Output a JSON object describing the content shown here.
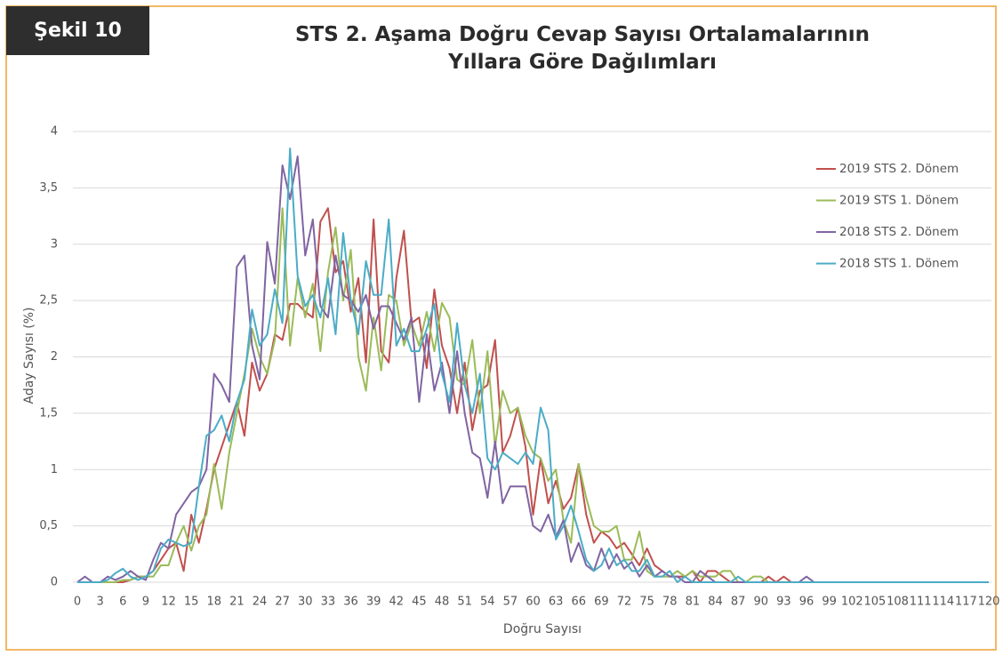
{
  "figure_label": "Şekil 10",
  "chart_data": {
    "type": "line",
    "title": "STS 2. Aşama Doğru Cevap Sayısı Ortalamalarının Yıllara Göre Dağılımları",
    "xlabel": "Doğru Sayısı",
    "ylabel": "Aday Sayısı (%)",
    "x": [
      0,
      1,
      2,
      3,
      4,
      5,
      6,
      7,
      8,
      9,
      10,
      11,
      12,
      13,
      14,
      15,
      16,
      17,
      18,
      19,
      20,
      21,
      22,
      23,
      24,
      25,
      26,
      27,
      28,
      29,
      30,
      31,
      32,
      33,
      34,
      35,
      36,
      37,
      38,
      39,
      40,
      41,
      42,
      43,
      44,
      45,
      46,
      47,
      48,
      49,
      50,
      51,
      52,
      53,
      54,
      55,
      56,
      57,
      58,
      59,
      60,
      61,
      62,
      63,
      64,
      65,
      66,
      67,
      68,
      69,
      70,
      71,
      72,
      73,
      74,
      75,
      76,
      77,
      78,
      79,
      80,
      81,
      82,
      83,
      84,
      85,
      86,
      87,
      88,
      89,
      90,
      91,
      92,
      93,
      94,
      95,
      96,
      97,
      98,
      99,
      100,
      101,
      102,
      103,
      104,
      105,
      106,
      107,
      108,
      109,
      110,
      111,
      112,
      113,
      114,
      115,
      116,
      117,
      118,
      119,
      120
    ],
    "xlim": [
      0,
      120
    ],
    "xticks": [
      0,
      3,
      6,
      9,
      12,
      15,
      18,
      21,
      24,
      27,
      30,
      33,
      36,
      39,
      42,
      45,
      48,
      51,
      54,
      57,
      60,
      63,
      66,
      69,
      72,
      75,
      78,
      81,
      84,
      87,
      90,
      93,
      96,
      99,
      102,
      105,
      108,
      111,
      114,
      117,
      120
    ],
    "ylim": [
      0,
      4
    ],
    "yticks": [
      0,
      {
        "value": 0.5,
        "label": "0,5"
      },
      1,
      {
        "value": 1.5,
        "label": "1,5"
      },
      2,
      {
        "value": 2.5,
        "label": "2,5"
      },
      3,
      {
        "value": 3.5,
        "label": "3,5"
      },
      4
    ],
    "grid": true,
    "legend": "right",
    "series": [
      {
        "name": "2019 STS 2. Dönem",
        "color": "#c0504d",
        "values": [
          0,
          0,
          0,
          0,
          0,
          0,
          0,
          0.02,
          0.05,
          0.05,
          0.1,
          0.2,
          0.3,
          0.35,
          0.1,
          0.6,
          0.35,
          0.65,
          1.0,
          1.2,
          1.4,
          1.6,
          1.3,
          1.95,
          1.7,
          1.85,
          2.2,
          2.15,
          2.47,
          2.47,
          2.4,
          2.35,
          3.2,
          3.32,
          2.75,
          2.85,
          2.4,
          2.7,
          1.95,
          3.22,
          2.05,
          1.95,
          2.7,
          3.12,
          2.3,
          2.35,
          1.9,
          2.6,
          2.1,
          1.9,
          1.5,
          1.95,
          1.35,
          1.7,
          1.75,
          2.15,
          1.15,
          1.3,
          1.55,
          1.2,
          0.6,
          1.1,
          0.7,
          0.9,
          0.65,
          0.75,
          1.05,
          0.6,
          0.35,
          0.45,
          0.4,
          0.3,
          0.35,
          0.25,
          0.15,
          0.3,
          0.15,
          0.1,
          0.05,
          0.05,
          0.05,
          0.1,
          0,
          0.1,
          0.1,
          0.05,
          0,
          0,
          0,
          0,
          0,
          0.05,
          0,
          0.05,
          0,
          0,
          0,
          0,
          0,
          0,
          0,
          0,
          0,
          0,
          0,
          0,
          0,
          0,
          0,
          0,
          0,
          0,
          0,
          0,
          0,
          0,
          0,
          0,
          0,
          0,
          0
        ]
      },
      {
        "name": "2019 STS 1. Dönem",
        "color": "#9bbb59",
        "values": [
          0,
          0,
          0,
          0,
          0,
          0,
          0.02,
          0.02,
          0.05,
          0.05,
          0.05,
          0.15,
          0.15,
          0.35,
          0.5,
          0.28,
          0.5,
          0.6,
          1.05,
          0.65,
          1.15,
          1.5,
          1.85,
          2.25,
          2.0,
          1.85,
          2.15,
          3.32,
          2.1,
          2.7,
          2.35,
          2.65,
          2.05,
          2.75,
          3.15,
          2.5,
          2.95,
          2.0,
          1.7,
          2.35,
          1.88,
          2.55,
          2.5,
          2.1,
          2.3,
          2.1,
          2.4,
          2.05,
          2.48,
          2.35,
          1.8,
          1.75,
          2.15,
          1.5,
          2.05,
          1.2,
          1.7,
          1.5,
          1.55,
          1.3,
          1.15,
          1.1,
          0.9,
          1.0,
          0.55,
          0.35,
          1.05,
          0.75,
          0.5,
          0.45,
          0.45,
          0.5,
          0.2,
          0.2,
          0.45,
          0.1,
          0.05,
          0.05,
          0.05,
          0.1,
          0.05,
          0.1,
          0.05,
          0.05,
          0.05,
          0.1,
          0.1,
          0,
          0,
          0.05,
          0.05,
          0,
          0,
          0,
          0,
          0,
          0,
          0,
          0,
          0,
          0,
          0,
          0,
          0,
          0,
          0,
          0,
          0,
          0,
          0,
          0,
          0,
          0,
          0,
          0,
          0,
          0,
          0,
          0,
          0,
          0
        ]
      },
      {
        "name": "2018 STS 2. Dönem",
        "color": "#8064a2",
        "values": [
          0,
          0.05,
          0,
          0,
          0.05,
          0.02,
          0.05,
          0.1,
          0.05,
          0.02,
          0.2,
          0.35,
          0.3,
          0.6,
          0.7,
          0.8,
          0.85,
          1.0,
          1.85,
          1.75,
          1.6,
          2.8,
          2.9,
          2.1,
          1.8,
          3.02,
          2.65,
          3.7,
          3.4,
          3.78,
          2.9,
          3.22,
          2.45,
          2.35,
          2.9,
          2.55,
          2.5,
          2.4,
          2.55,
          2.25,
          2.45,
          2.45,
          2.3,
          2.15,
          2.35,
          1.6,
          2.2,
          1.7,
          1.95,
          1.5,
          2.05,
          1.5,
          1.15,
          1.1,
          0.75,
          1.25,
          0.7,
          0.85,
          0.85,
          0.85,
          0.5,
          0.45,
          0.6,
          0.4,
          0.55,
          0.18,
          0.35,
          0.15,
          0.1,
          0.3,
          0.12,
          0.25,
          0.12,
          0.18,
          0.05,
          0.15,
          0.05,
          0.1,
          0.05,
          0.05,
          0,
          0,
          0.1,
          0.05,
          0,
          0,
          0,
          0,
          0,
          0,
          0,
          0,
          0,
          0,
          0,
          0,
          0.05,
          0,
          0,
          0,
          0,
          0,
          0,
          0,
          0,
          0,
          0,
          0,
          0,
          0,
          0,
          0,
          0,
          0,
          0,
          0,
          0,
          0,
          0,
          0,
          0
        ]
      },
      {
        "name": "2018 STS 1. Dönem",
        "color": "#4bacc6",
        "values": [
          0,
          0,
          0,
          0,
          0.02,
          0.08,
          0.12,
          0.05,
          0.02,
          0.05,
          0.1,
          0.3,
          0.38,
          0.35,
          0.32,
          0.35,
          0.85,
          1.3,
          1.35,
          1.48,
          1.25,
          1.6,
          1.8,
          2.42,
          2.1,
          2.2,
          2.6,
          2.3,
          3.85,
          2.72,
          2.45,
          2.55,
          2.35,
          2.7,
          2.2,
          3.1,
          2.5,
          2.2,
          2.85,
          2.55,
          2.55,
          3.22,
          2.1,
          2.25,
          2.05,
          2.05,
          2.25,
          2.47,
          1.85,
          1.6,
          2.3,
          1.75,
          1.5,
          1.85,
          1.1,
          1.0,
          1.15,
          1.1,
          1.05,
          1.15,
          1.05,
          1.55,
          1.35,
          0.38,
          0.5,
          0.68,
          0.45,
          0.2,
          0.1,
          0.15,
          0.3,
          0.15,
          0.2,
          0.1,
          0.1,
          0.2,
          0.05,
          0.05,
          0.1,
          0,
          0.05,
          0,
          0,
          0,
          0,
          0,
          0,
          0.05,
          0,
          0,
          0,
          0,
          0,
          0,
          0,
          0,
          0,
          0,
          0,
          0,
          0,
          0,
          0,
          0,
          0,
          0,
          0,
          0,
          0,
          0,
          0,
          0,
          0,
          0,
          0,
          0,
          0,
          0,
          0,
          0,
          0
        ]
      }
    ]
  }
}
